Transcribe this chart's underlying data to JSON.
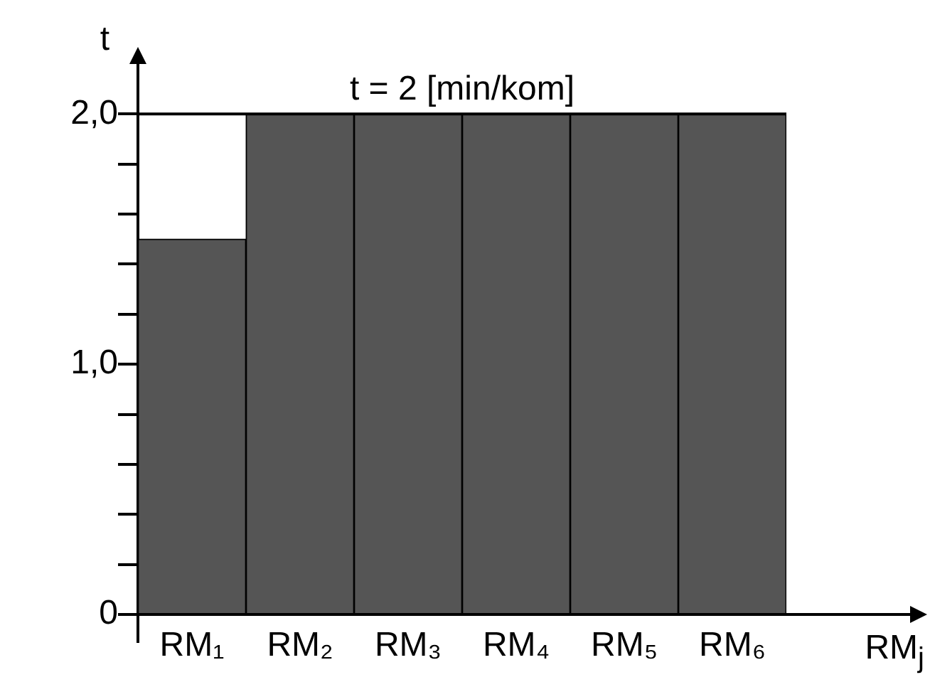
{
  "chart_data": {
    "type": "bar",
    "ylabel": "t",
    "xlabel": "RM$_{j}$",
    "categories": [
      "RM₁",
      "RM₂",
      "RM₃",
      "RM₄",
      "RM₅",
      "RM₆"
    ],
    "values": [
      1.5,
      2.0,
      2.0,
      2.0,
      2.0,
      2.0
    ],
    "color": "#555555",
    "ylim": [
      0,
      2.2
    ],
    "yticks": [
      0,
      {
        "value": 0.2,
        "label": null
      },
      {
        "value": 0.4,
        "label": null
      },
      {
        "value": 0.6,
        "label": null
      },
      {
        "value": 0.8,
        "label": null
      },
      {
        "value": 1,
        "label": "1,0"
      },
      {
        "value": 1.2,
        "label": null
      },
      {
        "value": 1.4,
        "label": null
      },
      {
        "value": 1.6,
        "label": null
      },
      {
        "value": 1.8,
        "label": null
      },
      {
        "value": 2,
        "label": "2,0"
      }
    ],
    "ref_lines": [
      {
        "axis": "y",
        "value": 2,
        "label": "t = 2 [min/kom]",
        "color": "#000000"
      }
    ],
    "grid": false,
    "legend": false
  }
}
